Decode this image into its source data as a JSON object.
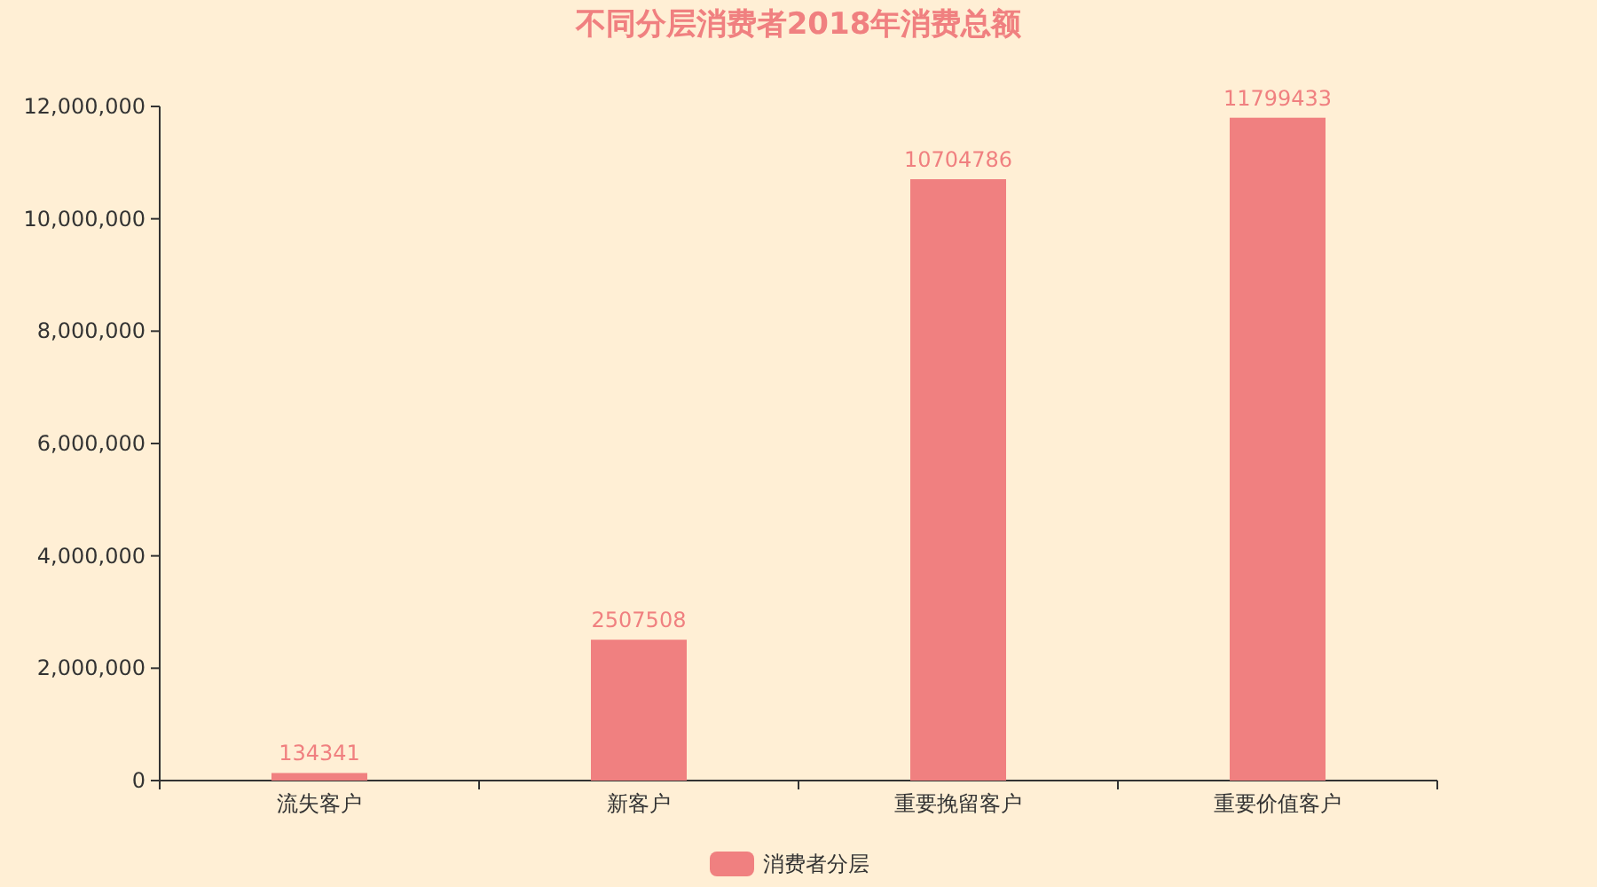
{
  "chart_data": {
    "type": "bar",
    "title": "不同分层消费者2018年消费总额",
    "categories": [
      "流失客户",
      "新客户",
      "重要挽留客户",
      "重要价值客户"
    ],
    "series": [
      {
        "name": "消费者分层",
        "color": "#f08080",
        "values": [
          134341,
          2507508,
          10704786,
          11799433
        ]
      }
    ],
    "ylim": [
      0,
      12000000
    ],
    "yticks": [
      0,
      {
        "value": 2000000,
        "label": "2,000,000"
      },
      {
        "value": 4000000,
        "label": "4,000,000"
      },
      {
        "value": 6000000,
        "label": "6,000,000"
      },
      {
        "value": 8000000,
        "label": "8,000,000"
      },
      {
        "value": 10000000,
        "label": "10,000,000"
      },
      {
        "value": 12000000,
        "label": "12,000,000"
      }
    ],
    "data_labels": true,
    "legend": "bottom",
    "grid": false
  }
}
